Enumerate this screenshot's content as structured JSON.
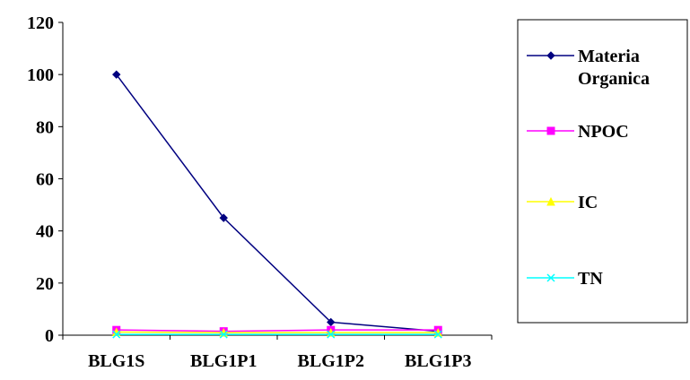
{
  "chart_data": {
    "type": "line",
    "title": "",
    "xlabel": "",
    "ylabel": "",
    "categories": [
      "BLG1S",
      "BLG1P1",
      "BLG1P2",
      "BLG1P3"
    ],
    "ylim": [
      0,
      120
    ],
    "yticks": [
      0,
      20,
      40,
      60,
      80,
      100,
      120
    ],
    "grid": false,
    "legend_position": "right",
    "series": [
      {
        "name": "Materia Organica",
        "name_lines": [
          "Materia",
          "Organica"
        ],
        "values": [
          100,
          45,
          5,
          1.5
        ],
        "color": "#000080",
        "marker": "diamond"
      },
      {
        "name": "NPOC",
        "name_lines": [
          "NPOC"
        ],
        "values": [
          2,
          1.5,
          2,
          2
        ],
        "color": "#ff00ff",
        "marker": "square"
      },
      {
        "name": "IC",
        "name_lines": [
          "IC"
        ],
        "values": [
          1.2,
          1,
          1,
          1
        ],
        "color": "#ffff00",
        "marker": "triangle"
      },
      {
        "name": "TN",
        "name_lines": [
          "TN"
        ],
        "values": [
          0.3,
          0.3,
          0.3,
          0.3
        ],
        "color": "#00ffff",
        "marker": "x"
      }
    ]
  }
}
